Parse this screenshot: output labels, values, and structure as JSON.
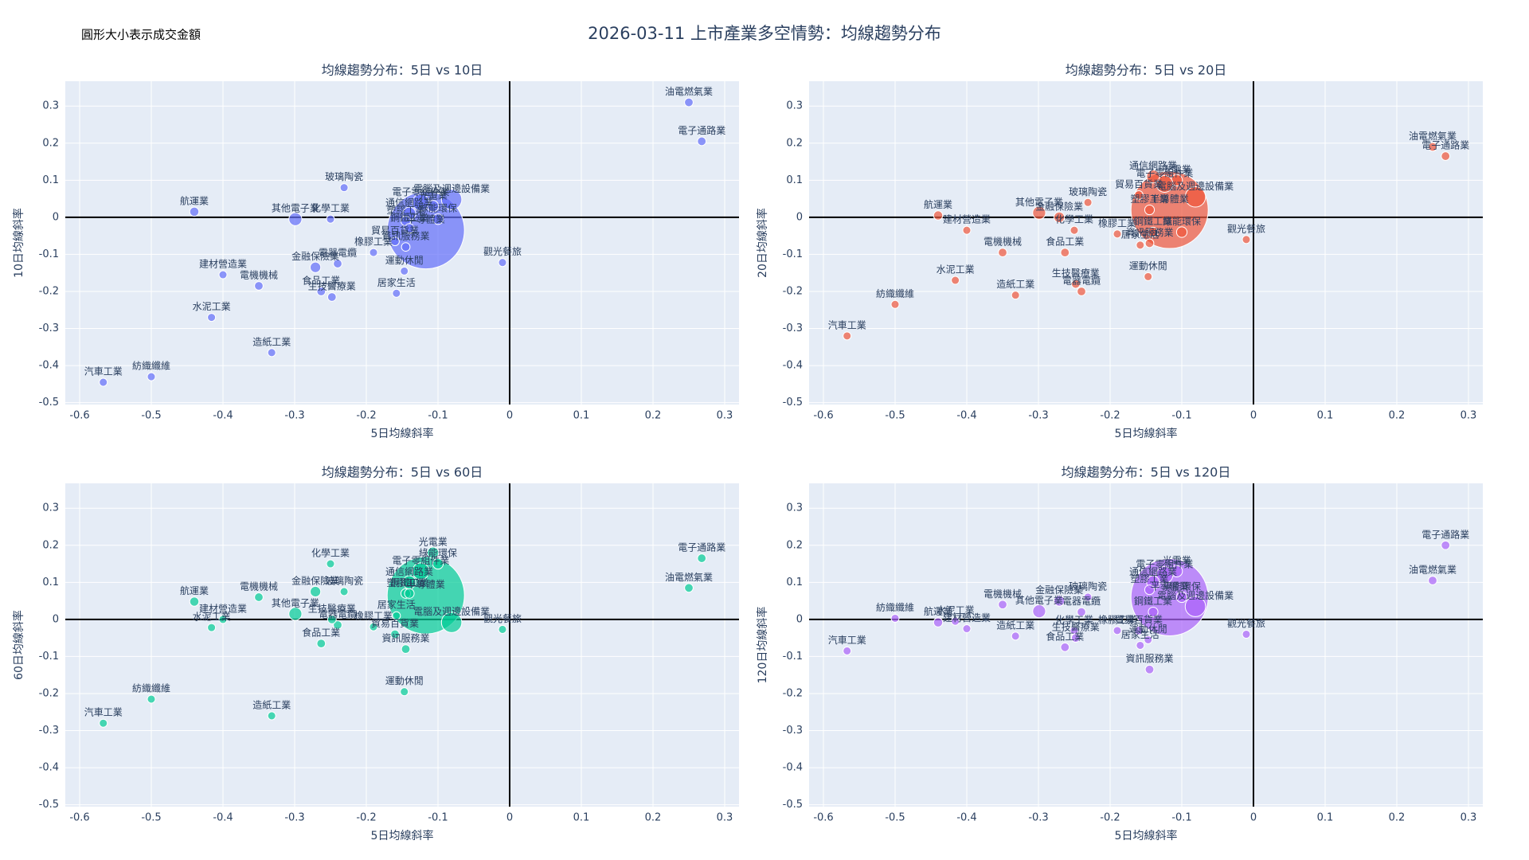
{
  "title": "2026-03-11 上市產業多空情勢：均線趨勢分布",
  "annotation": "圓形大小表示成交金額",
  "chart_data": [
    {
      "type": "scatter",
      "title": "均線趨勢分布：5日 vs 10日",
      "x_label": "5日均線斜率",
      "y_label": "10日均線斜率",
      "color": "#636efa",
      "xlim": [
        -0.62,
        0.32
      ],
      "ylim": [
        -0.505,
        0.367
      ],
      "xticks": [
        -0.6,
        -0.5,
        -0.4,
        -0.3,
        -0.2,
        -0.1,
        0,
        0.1,
        0.2,
        0.3
      ],
      "yticks": [
        -0.5,
        -0.4,
        -0.3,
        -0.2,
        -0.1,
        0,
        0.1,
        0.2,
        0.3
      ],
      "grid": true,
      "zeroline": true,
      "categories": [
        "油電燃氣業",
        "電子通路業",
        "觀光餐旅",
        "半導體業",
        "電腦及週邊設備業",
        "光電業",
        "電子零組件業",
        "通信網路業",
        "綠能環保",
        "塑膠工業",
        "鋼鐵工業",
        "資訊服務業",
        "貿易百貨業",
        "其他電子業",
        "化學工業",
        "玻璃陶瓷",
        "航運業",
        "建材營造業",
        "電機機械",
        "金融保險業",
        "電器電纜",
        "橡膠工業",
        "食品工業",
        "生技醫療業",
        "居家生活",
        "運動休閒",
        "水泥工業",
        "造紙工業",
        "紡織纖維",
        "汽車工業"
      ],
      "x": [
        0.25,
        0.268,
        -0.01,
        -0.117,
        -0.081,
        -0.107,
        -0.124,
        -0.14,
        -0.1,
        -0.145,
        -0.14,
        -0.145,
        -0.16,
        -0.299,
        -0.25,
        -0.231,
        -0.44,
        -0.4,
        -0.35,
        -0.271,
        -0.24,
        -0.19,
        -0.263,
        -0.248,
        -0.158,
        -0.147,
        -0.416,
        -0.332,
        -0.5,
        -0.567
      ],
      "y": [
        0.31,
        0.205,
        -0.122,
        -0.035,
        0.048,
        0.03,
        0.04,
        0.01,
        -0.005,
        -0.01,
        -0.03,
        -0.08,
        -0.065,
        -0.005,
        -0.005,
        0.08,
        0.015,
        -0.155,
        -0.185,
        -0.135,
        -0.125,
        -0.095,
        -0.2,
        -0.215,
        -0.205,
        -0.145,
        -0.27,
        -0.365,
        -0.43,
        -0.445
      ],
      "sizes": [
        0.4,
        0.4,
        0.3,
        100,
        5,
        1,
        3,
        1.5,
        0.8,
        0.6,
        0.6,
        0.4,
        0.4,
        1.5,
        0.3,
        0.3,
        0.5,
        0.3,
        0.4,
        0.8,
        0.4,
        0.3,
        0.4,
        0.4,
        0.3,
        0.3,
        0.3,
        0.3,
        0.3,
        0.3
      ]
    },
    {
      "type": "scatter",
      "title": "均線趨勢分布：5日 vs 20日",
      "x_label": "5日均線斜率",
      "y_label": "20日均線斜率",
      "color": "#ef553b",
      "xlim": [
        -0.62,
        0.32
      ],
      "ylim": [
        -0.505,
        0.367
      ],
      "xticks": [
        -0.6,
        -0.5,
        -0.4,
        -0.3,
        -0.2,
        -0.1,
        0,
        0.1,
        0.2,
        0.3
      ],
      "yticks": [
        -0.5,
        -0.4,
        -0.3,
        -0.2,
        -0.1,
        0,
        0.1,
        0.2,
        0.3
      ],
      "grid": true,
      "zeroline": true,
      "categories": [
        "油電燃氣業",
        "電子通路業",
        "觀光餐旅",
        "半導體業",
        "電腦及週邊設備業",
        "光電業",
        "電子零組件業",
        "通信網路業",
        "綠能環保",
        "塑膠工業",
        "鋼鐵工業",
        "資訊服務業",
        "貿易百貨業",
        "其他電子業",
        "化學工業",
        "玻璃陶瓷",
        "航運業",
        "建材營造業",
        "電機機械",
        "金融保險業",
        "電器電纜",
        "橡膠工業",
        "食品工業",
        "生技醫療業",
        "居家生活",
        "運動休閒",
        "水泥工業",
        "造紙工業",
        "紡織纖維",
        "汽車工業"
      ],
      "x": [
        0.25,
        0.268,
        -0.01,
        -0.117,
        -0.081,
        -0.107,
        -0.124,
        -0.14,
        -0.1,
        -0.145,
        -0.14,
        -0.145,
        -0.16,
        -0.299,
        -0.25,
        -0.231,
        -0.44,
        -0.4,
        -0.35,
        -0.271,
        -0.24,
        -0.19,
        -0.263,
        -0.248,
        -0.158,
        -0.147,
        -0.416,
        -0.332,
        -0.5,
        -0.567
      ],
      "y": [
        0.19,
        0.165,
        -0.06,
        0.02,
        0.055,
        0.1,
        0.09,
        0.11,
        -0.04,
        0.02,
        -0.04,
        -0.07,
        0.06,
        0.012,
        -0.035,
        0.04,
        0.005,
        -0.035,
        -0.095,
        0.0,
        -0.2,
        -0.045,
        -0.095,
        -0.18,
        -0.075,
        -0.16,
        -0.17,
        -0.21,
        -0.235,
        -0.32
      ],
      "sizes": [
        0.4,
        0.4,
        0.3,
        100,
        5,
        1,
        3,
        1.5,
        0.8,
        0.6,
        0.6,
        0.4,
        0.4,
        1.5,
        0.3,
        0.3,
        0.5,
        0.3,
        0.4,
        0.8,
        0.4,
        0.3,
        0.4,
        0.4,
        0.3,
        0.3,
        0.3,
        0.3,
        0.3,
        0.3
      ]
    },
    {
      "type": "scatter",
      "title": "均線趨勢分布：5日 vs 60日",
      "x_label": "5日均線斜率",
      "y_label": "60日均線斜率",
      "color": "#00cc96",
      "xlim": [
        -0.62,
        0.32
      ],
      "ylim": [
        -0.505,
        0.367
      ],
      "xticks": [
        -0.6,
        -0.5,
        -0.4,
        -0.3,
        -0.2,
        -0.1,
        0,
        0.1,
        0.2,
        0.3
      ],
      "yticks": [
        -0.5,
        -0.4,
        -0.3,
        -0.2,
        -0.1,
        0,
        0.1,
        0.2,
        0.3
      ],
      "grid": true,
      "zeroline": true,
      "categories": [
        "油電燃氣業",
        "電子通路業",
        "觀光餐旅",
        "半導體業",
        "電腦及週邊設備業",
        "光電業",
        "電子零組件業",
        "通信網路業",
        "綠能環保",
        "塑膠工業",
        "鋼鐵工業",
        "資訊服務業",
        "貿易百貨業",
        "其他電子業",
        "化學工業",
        "玻璃陶瓷",
        "航運業",
        "建材營造業",
        "電機機械",
        "金融保險業",
        "電器電纜",
        "橡膠工業",
        "食品工業",
        "生技醫療業",
        "居家生活",
        "運動休閒",
        "水泥工業",
        "造紙工業",
        "紡織纖維",
        "汽車工業"
      ],
      "x": [
        0.25,
        0.268,
        -0.01,
        -0.117,
        -0.081,
        -0.107,
        -0.124,
        -0.14,
        -0.1,
        -0.145,
        -0.14,
        -0.145,
        -0.16,
        -0.299,
        -0.25,
        -0.231,
        -0.44,
        -0.4,
        -0.35,
        -0.271,
        -0.24,
        -0.19,
        -0.263,
        -0.248,
        -0.158,
        -0.147,
        -0.416,
        -0.332,
        -0.5,
        -0.567
      ],
      "y": [
        0.085,
        0.165,
        -0.027,
        0.065,
        -0.008,
        0.18,
        0.13,
        0.1,
        0.15,
        0.07,
        0.07,
        -0.08,
        -0.04,
        0.015,
        0.15,
        0.075,
        0.048,
        0.0,
        0.06,
        0.075,
        -0.015,
        -0.02,
        -0.065,
        0.0,
        0.01,
        -0.195,
        -0.022,
        -0.26,
        -0.215,
        -0.28
      ],
      "sizes": [
        0.4,
        0.4,
        0.3,
        100,
        5,
        1,
        3,
        1.5,
        0.8,
        0.6,
        0.6,
        0.4,
        0.4,
        1.5,
        0.3,
        0.3,
        0.5,
        0.3,
        0.4,
        0.8,
        0.4,
        0.3,
        0.4,
        0.4,
        0.3,
        0.3,
        0.3,
        0.3,
        0.3,
        0.3
      ]
    },
    {
      "type": "scatter",
      "title": "均線趨勢分布：5日 vs 120日",
      "x_label": "5日均線斜率",
      "y_label": "120日均線斜率",
      "color": "#ab63fa",
      "xlim": [
        -0.62,
        0.32
      ],
      "ylim": [
        -0.505,
        0.367
      ],
      "xticks": [
        -0.6,
        -0.5,
        -0.4,
        -0.3,
        -0.2,
        -0.1,
        0,
        0.1,
        0.2,
        0.3
      ],
      "yticks": [
        -0.5,
        -0.4,
        -0.3,
        -0.2,
        -0.1,
        0,
        0.1,
        0.2,
        0.3
      ],
      "grid": true,
      "zeroline": true,
      "categories": [
        "油電燃氣業",
        "電子通路業",
        "觀光餐旅",
        "半導體業",
        "電腦及週邊設備業",
        "光電業",
        "電子零組件業",
        "通信網路業",
        "綠能環保",
        "塑膠工業",
        "鋼鐵工業",
        "資訊服務業",
        "貿易百貨業",
        "其他電子業",
        "化學工業",
        "玻璃陶瓷",
        "航運業",
        "建材營造業",
        "電機機械",
        "金融保險業",
        "電器電纜",
        "橡膠工業",
        "食品工業",
        "生技醫療業",
        "居家生活",
        "運動休閒",
        "水泥工業",
        "造紙工業",
        "紡織纖維",
        "汽車工業"
      ],
      "x": [
        0.25,
        0.268,
        -0.01,
        -0.117,
        -0.081,
        -0.107,
        -0.124,
        -0.14,
        -0.1,
        -0.145,
        -0.14,
        -0.145,
        -0.16,
        -0.299,
        -0.25,
        -0.231,
        -0.44,
        -0.4,
        -0.35,
        -0.271,
        -0.24,
        -0.19,
        -0.263,
        -0.248,
        -0.158,
        -0.147,
        -0.416,
        -0.332,
        -0.5,
        -0.567
      ],
      "y": [
        0.105,
        0.2,
        -0.04,
        0.06,
        0.035,
        0.13,
        0.12,
        0.1,
        0.06,
        0.08,
        0.02,
        -0.135,
        -0.03,
        0.022,
        -0.03,
        0.06,
        -0.008,
        -0.025,
        0.04,
        0.05,
        0.02,
        -0.03,
        -0.075,
        -0.05,
        -0.07,
        -0.055,
        -0.005,
        -0.045,
        0.003,
        -0.085
      ],
      "sizes": [
        0.4,
        0.4,
        0.3,
        100,
        5,
        1,
        3,
        1.5,
        0.8,
        0.6,
        0.6,
        0.4,
        0.4,
        1.5,
        0.3,
        0.3,
        0.5,
        0.3,
        0.4,
        0.8,
        0.4,
        0.3,
        0.4,
        0.4,
        0.3,
        0.3,
        0.3,
        0.3,
        0.3,
        0.3
      ]
    }
  ]
}
